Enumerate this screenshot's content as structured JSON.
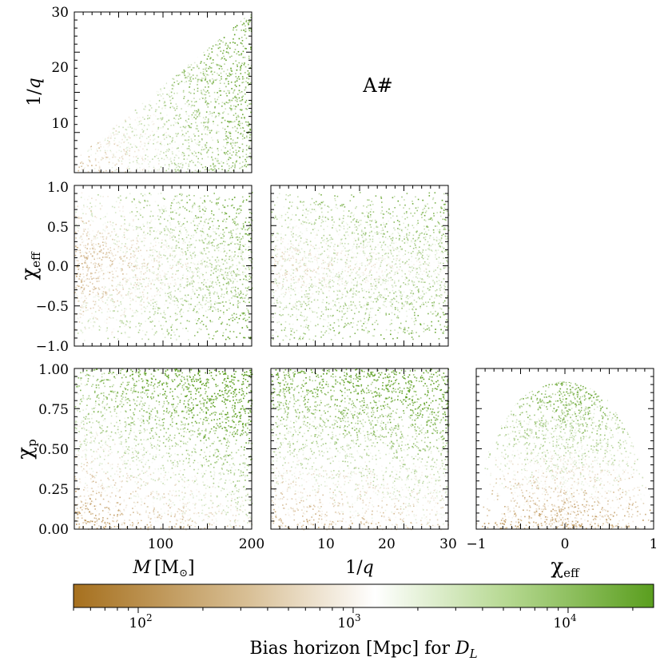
{
  "chart_data": {
    "type": "scatter",
    "figure_label": "A#",
    "colorbar": {
      "label": "Bias horizon [Mpc] for D_L",
      "label_main": "Bias horizon [Mpc] for ",
      "label_var": "D",
      "label_sub": "L",
      "scale": "log",
      "range": [
        50,
        25000
      ],
      "ticks": [
        {
          "base": "10",
          "exp": "2",
          "value": 100
        },
        {
          "base": "10",
          "exp": "3",
          "value": 1000
        },
        {
          "base": "10",
          "exp": "4",
          "value": 10000
        }
      ],
      "colors": [
        "#a6701e",
        "#ffffff",
        "#5a9e1e"
      ]
    },
    "panels": [
      {
        "name": "M-vs-invq",
        "x": "M",
        "y": "1/q",
        "xlim": [
          25,
          200
        ],
        "ylim": [
          1,
          30
        ],
        "yticks": [
          10,
          20,
          30
        ],
        "ylabel": "1/q"
      },
      {
        "name": "M-vs-chieff",
        "x": "M",
        "y": "chi_eff",
        "xlim": [
          25,
          200
        ],
        "ylim": [
          -1,
          1
        ],
        "yticks": [
          "−1.0",
          "−0.5",
          "0.0",
          "0.5",
          "1.0"
        ],
        "ylabel": "χeff"
      },
      {
        "name": "invq-vs-chieff",
        "x": "1/q",
        "y": "chi_eff",
        "xlim": [
          1,
          30
        ],
        "ylim": [
          -1,
          1
        ]
      },
      {
        "name": "M-vs-chip",
        "x": "M",
        "y": "chi_p",
        "xlim": [
          25,
          200
        ],
        "ylim": [
          0,
          1
        ],
        "yticks": [
          "0.00",
          "0.25",
          "0.50",
          "0.75",
          "1.00"
        ],
        "xticks": [
          "100",
          "200"
        ],
        "ylabel": "χp",
        "xlabel": "M [M⊙]"
      },
      {
        "name": "invq-vs-chip",
        "x": "1/q",
        "y": "chi_p",
        "xlim": [
          1,
          30
        ],
        "ylim": [
          0,
          1
        ],
        "xticks": [
          "10",
          "20",
          "30"
        ],
        "xlabel": "1/q"
      },
      {
        "name": "chieff-vs-chip",
        "x": "chi_eff",
        "y": "chi_p",
        "xlim": [
          -1,
          1
        ],
        "ylim": [
          0,
          1
        ],
        "xticks": [
          "−1",
          "0",
          "1"
        ],
        "xlabel": "χeff"
      }
    ],
    "labels": {
      "invq_tick_10": "10",
      "invq_tick_20": "20",
      "invq_tick_30": "30",
      "chieff_yticks": [
        "1.0",
        "0.5",
        "0.0",
        "−0.5",
        "−1.0"
      ],
      "chip_yticks": [
        "1.00",
        "0.75",
        "0.50",
        "0.25",
        "0.00"
      ],
      "m_xticks": [
        "100",
        "200"
      ],
      "invq_xticks": [
        "10",
        "20",
        "30"
      ],
      "chieff_xticks": [
        "−1",
        "0",
        "1"
      ],
      "ylabel_invq_num": "1/",
      "ylabel_invq_var": "q",
      "ylabel_chieff_sym": "χ",
      "ylabel_chieff_sub": "eff",
      "ylabel_chip_sym": "χ",
      "ylabel_chip_sub": "p",
      "xlabel_m_var": "M",
      "xlabel_m_unit": "[M",
      "xlabel_m_sun": "⊙",
      "xlabel_m_close": "]",
      "xlabel_invq_num": "1/",
      "xlabel_invq_var": "q",
      "xlabel_chieff_sym": "χ",
      "xlabel_chieff_sub": "eff"
    }
  }
}
